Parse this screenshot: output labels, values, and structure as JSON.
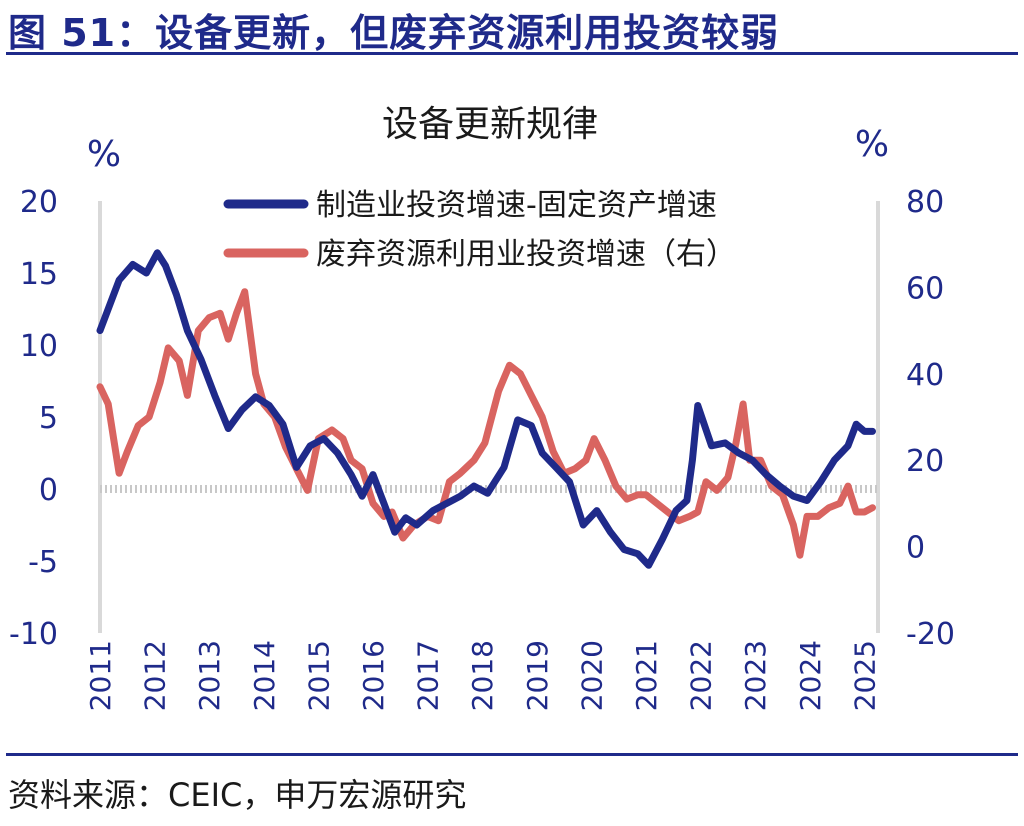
{
  "figure": {
    "title": "图 51：设备更新，但废弃资源利用投资较弱",
    "source": "资料来源：CEIC，申万宏源研究"
  },
  "colors": {
    "blue": "#1f2a8a",
    "red": "#d96460",
    "axis": "#d9d9d9",
    "text": "#1f2a8a"
  },
  "chart_data": {
    "type": "line",
    "title": "设备更新规律",
    "ylabel_left": "%",
    "ylabel_right": "%",
    "ylim_left": [
      -10,
      20
    ],
    "ylim_right": [
      -20,
      80
    ],
    "yticks_left": [
      "20",
      "15",
      "10",
      "5",
      "0",
      "-5",
      "-10"
    ],
    "yticks_right": [
      "80",
      "60",
      "40",
      "20",
      "0",
      "-20"
    ],
    "x_tick_labels": [
      "2011",
      "2012",
      "2013",
      "2014",
      "2015",
      "2016",
      "2017",
      "2018",
      "2019",
      "2020",
      "2021",
      "2022",
      "2023",
      "2024",
      "2025"
    ],
    "x_range": [
      2011.0,
      2025.25
    ],
    "legend_position": "top-center",
    "series": [
      {
        "name": "制造业投资增速-固定资产增速",
        "axis": "left",
        "color": "#1f2a8a",
        "points": [
          [
            2011.0,
            11.0
          ],
          [
            2011.15,
            12.5
          ],
          [
            2011.35,
            14.5
          ],
          [
            2011.6,
            15.6
          ],
          [
            2011.85,
            15.0
          ],
          [
            2012.05,
            16.4
          ],
          [
            2012.2,
            15.5
          ],
          [
            2012.4,
            13.5
          ],
          [
            2012.6,
            11.0
          ],
          [
            2012.85,
            9.0
          ],
          [
            2013.1,
            6.5
          ],
          [
            2013.35,
            4.2
          ],
          [
            2013.6,
            5.5
          ],
          [
            2013.85,
            6.4
          ],
          [
            2014.1,
            5.8
          ],
          [
            2014.35,
            4.5
          ],
          [
            2014.6,
            1.5
          ],
          [
            2014.85,
            3.0
          ],
          [
            2015.1,
            3.5
          ],
          [
            2015.35,
            2.5
          ],
          [
            2015.6,
            1.0
          ],
          [
            2015.8,
            -0.5
          ],
          [
            2016.0,
            1.0
          ],
          [
            2016.2,
            -1.0
          ],
          [
            2016.4,
            -3.0
          ],
          [
            2016.6,
            -2.0
          ],
          [
            2016.8,
            -2.5
          ],
          [
            2017.1,
            -1.5
          ],
          [
            2017.35,
            -1.0
          ],
          [
            2017.6,
            -0.5
          ],
          [
            2017.85,
            0.2
          ],
          [
            2018.1,
            -0.3
          ],
          [
            2018.4,
            1.5
          ],
          [
            2018.65,
            4.8
          ],
          [
            2018.9,
            4.4
          ],
          [
            2019.1,
            2.5
          ],
          [
            2019.35,
            1.5
          ],
          [
            2019.6,
            0.5
          ],
          [
            2019.85,
            -2.5
          ],
          [
            2020.1,
            -1.5
          ],
          [
            2020.35,
            -3.0
          ],
          [
            2020.6,
            -4.2
          ],
          [
            2020.85,
            -4.5
          ],
          [
            2021.05,
            -5.3
          ],
          [
            2021.3,
            -3.5
          ],
          [
            2021.55,
            -1.5
          ],
          [
            2021.75,
            -0.8
          ],
          [
            2021.85,
            2.0
          ],
          [
            2021.95,
            5.8
          ],
          [
            2022.2,
            3.0
          ],
          [
            2022.45,
            3.2
          ],
          [
            2022.7,
            2.5
          ],
          [
            2022.95,
            2.0
          ],
          [
            2023.2,
            1.0
          ],
          [
            2023.45,
            0.2
          ],
          [
            2023.7,
            -0.5
          ],
          [
            2023.95,
            -0.8
          ],
          [
            2024.2,
            0.5
          ],
          [
            2024.45,
            2.0
          ],
          [
            2024.7,
            3.0
          ],
          [
            2024.85,
            4.5
          ],
          [
            2025.0,
            4.0
          ],
          [
            2025.15,
            4.0
          ]
        ]
      },
      {
        "name": "废弃资源利用业投资增速（右）",
        "axis": "right",
        "color": "#d96460",
        "points": [
          [
            2011.0,
            37
          ],
          [
            2011.15,
            33
          ],
          [
            2011.25,
            25
          ],
          [
            2011.35,
            17
          ],
          [
            2011.5,
            22
          ],
          [
            2011.7,
            28
          ],
          [
            2011.9,
            30
          ],
          [
            2012.1,
            38
          ],
          [
            2012.25,
            46
          ],
          [
            2012.45,
            43
          ],
          [
            2012.6,
            35
          ],
          [
            2012.8,
            50
          ],
          [
            2013.0,
            53
          ],
          [
            2013.2,
            54
          ],
          [
            2013.35,
            48
          ],
          [
            2013.5,
            54
          ],
          [
            2013.65,
            59
          ],
          [
            2013.85,
            40
          ],
          [
            2014.0,
            33
          ],
          [
            2014.2,
            30
          ],
          [
            2014.4,
            23
          ],
          [
            2014.6,
            18
          ],
          [
            2014.8,
            13
          ],
          [
            2015.0,
            25
          ],
          [
            2015.25,
            27
          ],
          [
            2015.45,
            25
          ],
          [
            2015.6,
            20
          ],
          [
            2015.8,
            18
          ],
          [
            2016.0,
            10
          ],
          [
            2016.2,
            7
          ],
          [
            2016.35,
            8
          ],
          [
            2016.55,
            2
          ],
          [
            2016.75,
            5
          ],
          [
            2017.0,
            7
          ],
          [
            2017.2,
            6
          ],
          [
            2017.4,
            15
          ],
          [
            2017.6,
            17
          ],
          [
            2017.85,
            20
          ],
          [
            2018.05,
            24
          ],
          [
            2018.3,
            36
          ],
          [
            2018.5,
            42
          ],
          [
            2018.7,
            40
          ],
          [
            2018.9,
            35
          ],
          [
            2019.1,
            30
          ],
          [
            2019.3,
            22
          ],
          [
            2019.5,
            17
          ],
          [
            2019.7,
            18
          ],
          [
            2019.9,
            20
          ],
          [
            2020.05,
            25
          ],
          [
            2020.25,
            20
          ],
          [
            2020.45,
            14
          ],
          [
            2020.65,
            11
          ],
          [
            2020.85,
            12
          ],
          [
            2021.0,
            12
          ],
          [
            2021.2,
            10
          ],
          [
            2021.4,
            8
          ],
          [
            2021.6,
            6
          ],
          [
            2021.8,
            7
          ],
          [
            2021.95,
            8
          ],
          [
            2022.1,
            15
          ],
          [
            2022.3,
            13
          ],
          [
            2022.5,
            16
          ],
          [
            2022.65,
            24
          ],
          [
            2022.78,
            33
          ],
          [
            2022.9,
            20
          ],
          [
            2023.1,
            20
          ],
          [
            2023.3,
            14
          ],
          [
            2023.5,
            12
          ],
          [
            2023.7,
            5
          ],
          [
            2023.82,
            -2
          ],
          [
            2023.95,
            7
          ],
          [
            2024.15,
            7
          ],
          [
            2024.35,
            9
          ],
          [
            2024.55,
            10
          ],
          [
            2024.7,
            14
          ],
          [
            2024.85,
            8
          ],
          [
            2025.0,
            8
          ],
          [
            2025.15,
            9
          ]
        ]
      }
    ]
  }
}
